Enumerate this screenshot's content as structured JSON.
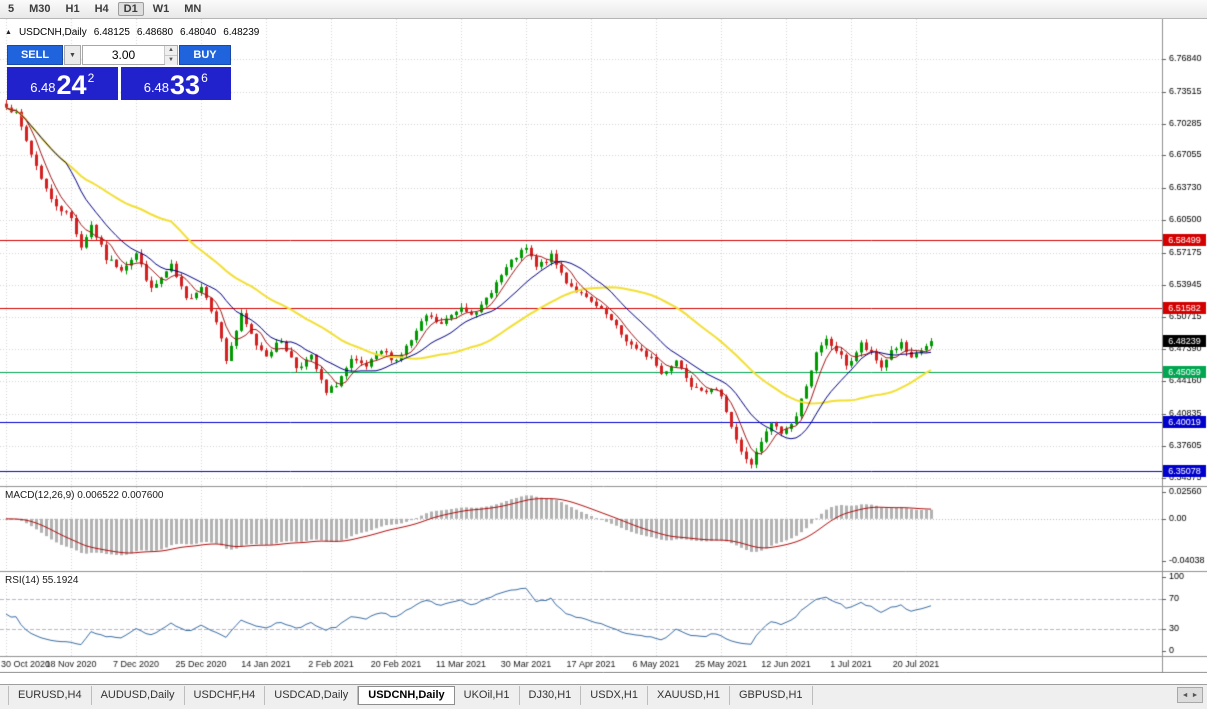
{
  "toolbar": {
    "timeframes": [
      "5",
      "M30",
      "H1",
      "H4",
      "D1",
      "W1",
      "MN"
    ],
    "active": "D1"
  },
  "chart_header": {
    "symbol": "USDCNH,Daily",
    "open": "6.48125",
    "high": "6.48680",
    "low": "6.48040",
    "close": "6.48239"
  },
  "trade_panel": {
    "sell_label": "SELL",
    "buy_label": "BUY",
    "volume": "3.00",
    "sell_price": {
      "prefix": "6.48",
      "big": "24",
      "sup": "2"
    },
    "buy_price": {
      "prefix": "6.48",
      "big": "33",
      "sup": "6"
    }
  },
  "indicators": {
    "macd_label": "MACD(12,26,9) 0.006522 0.007600",
    "rsi_label": "RSI(14) 55.1924"
  },
  "tabs": {
    "items": [
      "EURUSD,H4",
      "AUDUSD,Daily",
      "USDCHF,H4",
      "USDCAD,Daily",
      "USDCNH,Daily",
      "UKOil,H1",
      "DJ30,H1",
      "USDX,H1",
      "XAUUSD,H1",
      "GBPUSD,H1"
    ],
    "active_index": 4
  },
  "chart_data": {
    "type": "candlestick",
    "symbol": "USDCNH",
    "timeframe": "Daily",
    "bars": 186,
    "seed": 7,
    "price_range": [
      6.3355,
      6.8089
    ],
    "current_price": {
      "value": 6.48239,
      "label": "6.48239",
      "color": "#000000"
    },
    "y_ticks": [
      "6.76840",
      "6.73515",
      "6.70285",
      "6.67055",
      "6.63730",
      "6.60500",
      "6.57175",
      "6.53945",
      "6.50715",
      "6.47390",
      "6.44160",
      "6.40835",
      "6.37605",
      "6.34375"
    ],
    "x_labels": [
      {
        "bar": 0,
        "label": "30 Oct 2020"
      },
      {
        "bar": 13,
        "label": "18 Nov 2020"
      },
      {
        "bar": 26,
        "label": "7 Dec 2020"
      },
      {
        "bar": 39,
        "label": "25 Dec 2020"
      },
      {
        "bar": 52,
        "label": "14 Jan 2021"
      },
      {
        "bar": 65,
        "label": "2 Feb 2021"
      },
      {
        "bar": 78,
        "label": "20 Feb 2021"
      },
      {
        "bar": 91,
        "label": "11 Mar 2021"
      },
      {
        "bar": 104,
        "label": "30 Mar 2021"
      },
      {
        "bar": 117,
        "label": "17 Apr 2021"
      },
      {
        "bar": 130,
        "label": "6 May 2021"
      },
      {
        "bar": 143,
        "label": "25 May 2021"
      },
      {
        "bar": 156,
        "label": "12 Jun 2021"
      },
      {
        "bar": 169,
        "label": "1 Jul 2021"
      },
      {
        "bar": 182,
        "label": "20 Jul 2021"
      }
    ],
    "hlines": [
      {
        "price": 6.58499,
        "label": "6.58499",
        "color": "#d40000"
      },
      {
        "price": 6.51582,
        "label": "6.51582",
        "color": "#d40000"
      },
      {
        "price": 6.45059,
        "label": "6.45059",
        "color": "#00a651"
      },
      {
        "price": 6.40019,
        "label": "6.40019",
        "color": "#0000cc"
      },
      {
        "price": 6.35078,
        "label": "6.35078",
        "color": "#0000cc"
      }
    ],
    "close_waypoints": [
      [
        0,
        6.722
      ],
      [
        2,
        6.712
      ],
      [
        5,
        6.672
      ],
      [
        9,
        6.625
      ],
      [
        13,
        6.607
      ],
      [
        15,
        6.578
      ],
      [
        17,
        6.6
      ],
      [
        20,
        6.566
      ],
      [
        23,
        6.556
      ],
      [
        26,
        6.571
      ],
      [
        29,
        6.534
      ],
      [
        33,
        6.558
      ],
      [
        36,
        6.524
      ],
      [
        39,
        6.538
      ],
      [
        42,
        6.504
      ],
      [
        44,
        6.463
      ],
      [
        47,
        6.508
      ],
      [
        50,
        6.479
      ],
      [
        52,
        6.469
      ],
      [
        55,
        6.483
      ],
      [
        58,
        6.456
      ],
      [
        61,
        6.466
      ],
      [
        64,
        6.429
      ],
      [
        66,
        6.439
      ],
      [
        69,
        6.462
      ],
      [
        72,
        6.456
      ],
      [
        75,
        6.472
      ],
      [
        78,
        6.463
      ],
      [
        81,
        6.483
      ],
      [
        84,
        6.508
      ],
      [
        87,
        6.499
      ],
      [
        91,
        6.518
      ],
      [
        94,
        6.509
      ],
      [
        97,
        6.534
      ],
      [
        100,
        6.556
      ],
      [
        102,
        6.568
      ],
      [
        104,
        6.576
      ],
      [
        106,
        6.557
      ],
      [
        109,
        6.568
      ],
      [
        112,
        6.543
      ],
      [
        115,
        6.529
      ],
      [
        117,
        6.521
      ],
      [
        120,
        6.509
      ],
      [
        123,
        6.489
      ],
      [
        126,
        6.473
      ],
      [
        129,
        6.466
      ],
      [
        131,
        6.449
      ],
      [
        134,
        6.463
      ],
      [
        137,
        6.439
      ],
      [
        140,
        6.433
      ],
      [
        143,
        6.429
      ],
      [
        145,
        6.396
      ],
      [
        147,
        6.369
      ],
      [
        149,
        6.358
      ],
      [
        151,
        6.379
      ],
      [
        153,
        6.399
      ],
      [
        155,
        6.389
      ],
      [
        156,
        6.393
      ],
      [
        158,
        6.406
      ],
      [
        160,
        6.439
      ],
      [
        162,
        6.469
      ],
      [
        164,
        6.483
      ],
      [
        166,
        6.473
      ],
      [
        168,
        6.459
      ],
      [
        169,
        6.463
      ],
      [
        171,
        6.479
      ],
      [
        173,
        6.469
      ],
      [
        175,
        6.456
      ],
      [
        177,
        6.473
      ],
      [
        179,
        6.479
      ],
      [
        181,
        6.463
      ],
      [
        183,
        6.473
      ],
      [
        185,
        6.4824
      ]
    ],
    "candle_up_color": "#009900",
    "candle_down_color": "#d32020",
    "moving_averages": [
      {
        "period": 34,
        "color": "#f2df33",
        "width": 2
      },
      {
        "period": 13,
        "color": "#000080",
        "width": 1
      },
      {
        "period": 5,
        "color": "#a01818",
        "width": 1
      }
    ],
    "macd": {
      "params": [
        12,
        26,
        9
      ],
      "values": [
        "0.006522",
        "0.007600"
      ],
      "range": [
        -0.05,
        0.0305
      ],
      "y_ticks": [
        "0.02560",
        "0.00",
        "-0.04038"
      ],
      "hist_color": "#b2b2b2",
      "signal_color": "#b01010"
    },
    "rsi": {
      "period": 14,
      "value": "55.1924",
      "levels": [
        70,
        30
      ],
      "y_ticks": [
        "100",
        "70",
        "30",
        "0"
      ],
      "line_color": "#3b6ea5"
    },
    "layout": {
      "price_scale_x": 1162,
      "bar_start_x": 6,
      "bar_spacing": 5,
      "main_h": 467,
      "macd_h": 84,
      "rsi_h": 84
    }
  }
}
